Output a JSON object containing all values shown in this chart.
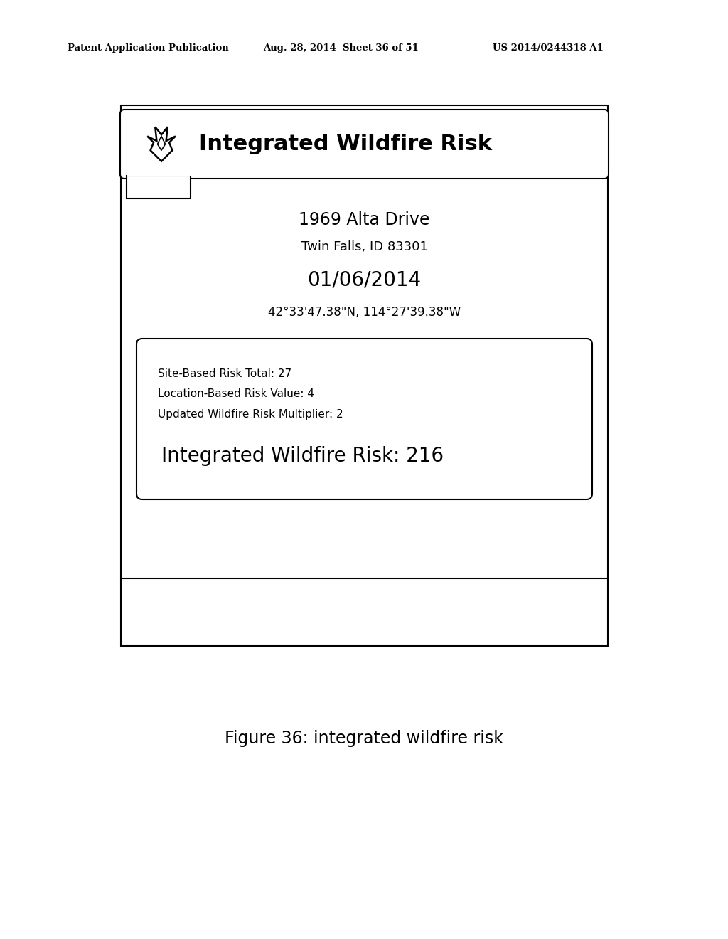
{
  "bg_color": "#ffffff",
  "header_text": "Patent Application Publication",
  "header_date": "Aug. 28, 2014  Sheet 36 of 51",
  "header_patent": "US 2014/0244318 A1",
  "title": "Integrated Wildfire Risk",
  "address_line1": "1969 Alta Drive",
  "address_line2": "Twin Falls, ID 83301",
  "date_str": "01/06/2014",
  "coords": "42°33'47.38\"N, 114°27'39.38\"W",
  "risk_line1": "Site-Based Risk Total: 27",
  "risk_line2": "Location-Based Risk Value: 4",
  "risk_line3": "Updated Wildfire Risk Multiplier: 2",
  "integrated_risk": "Integrated Wildfire Risk: 216",
  "figure_caption": "Figure 36: integrated wildfire risk"
}
